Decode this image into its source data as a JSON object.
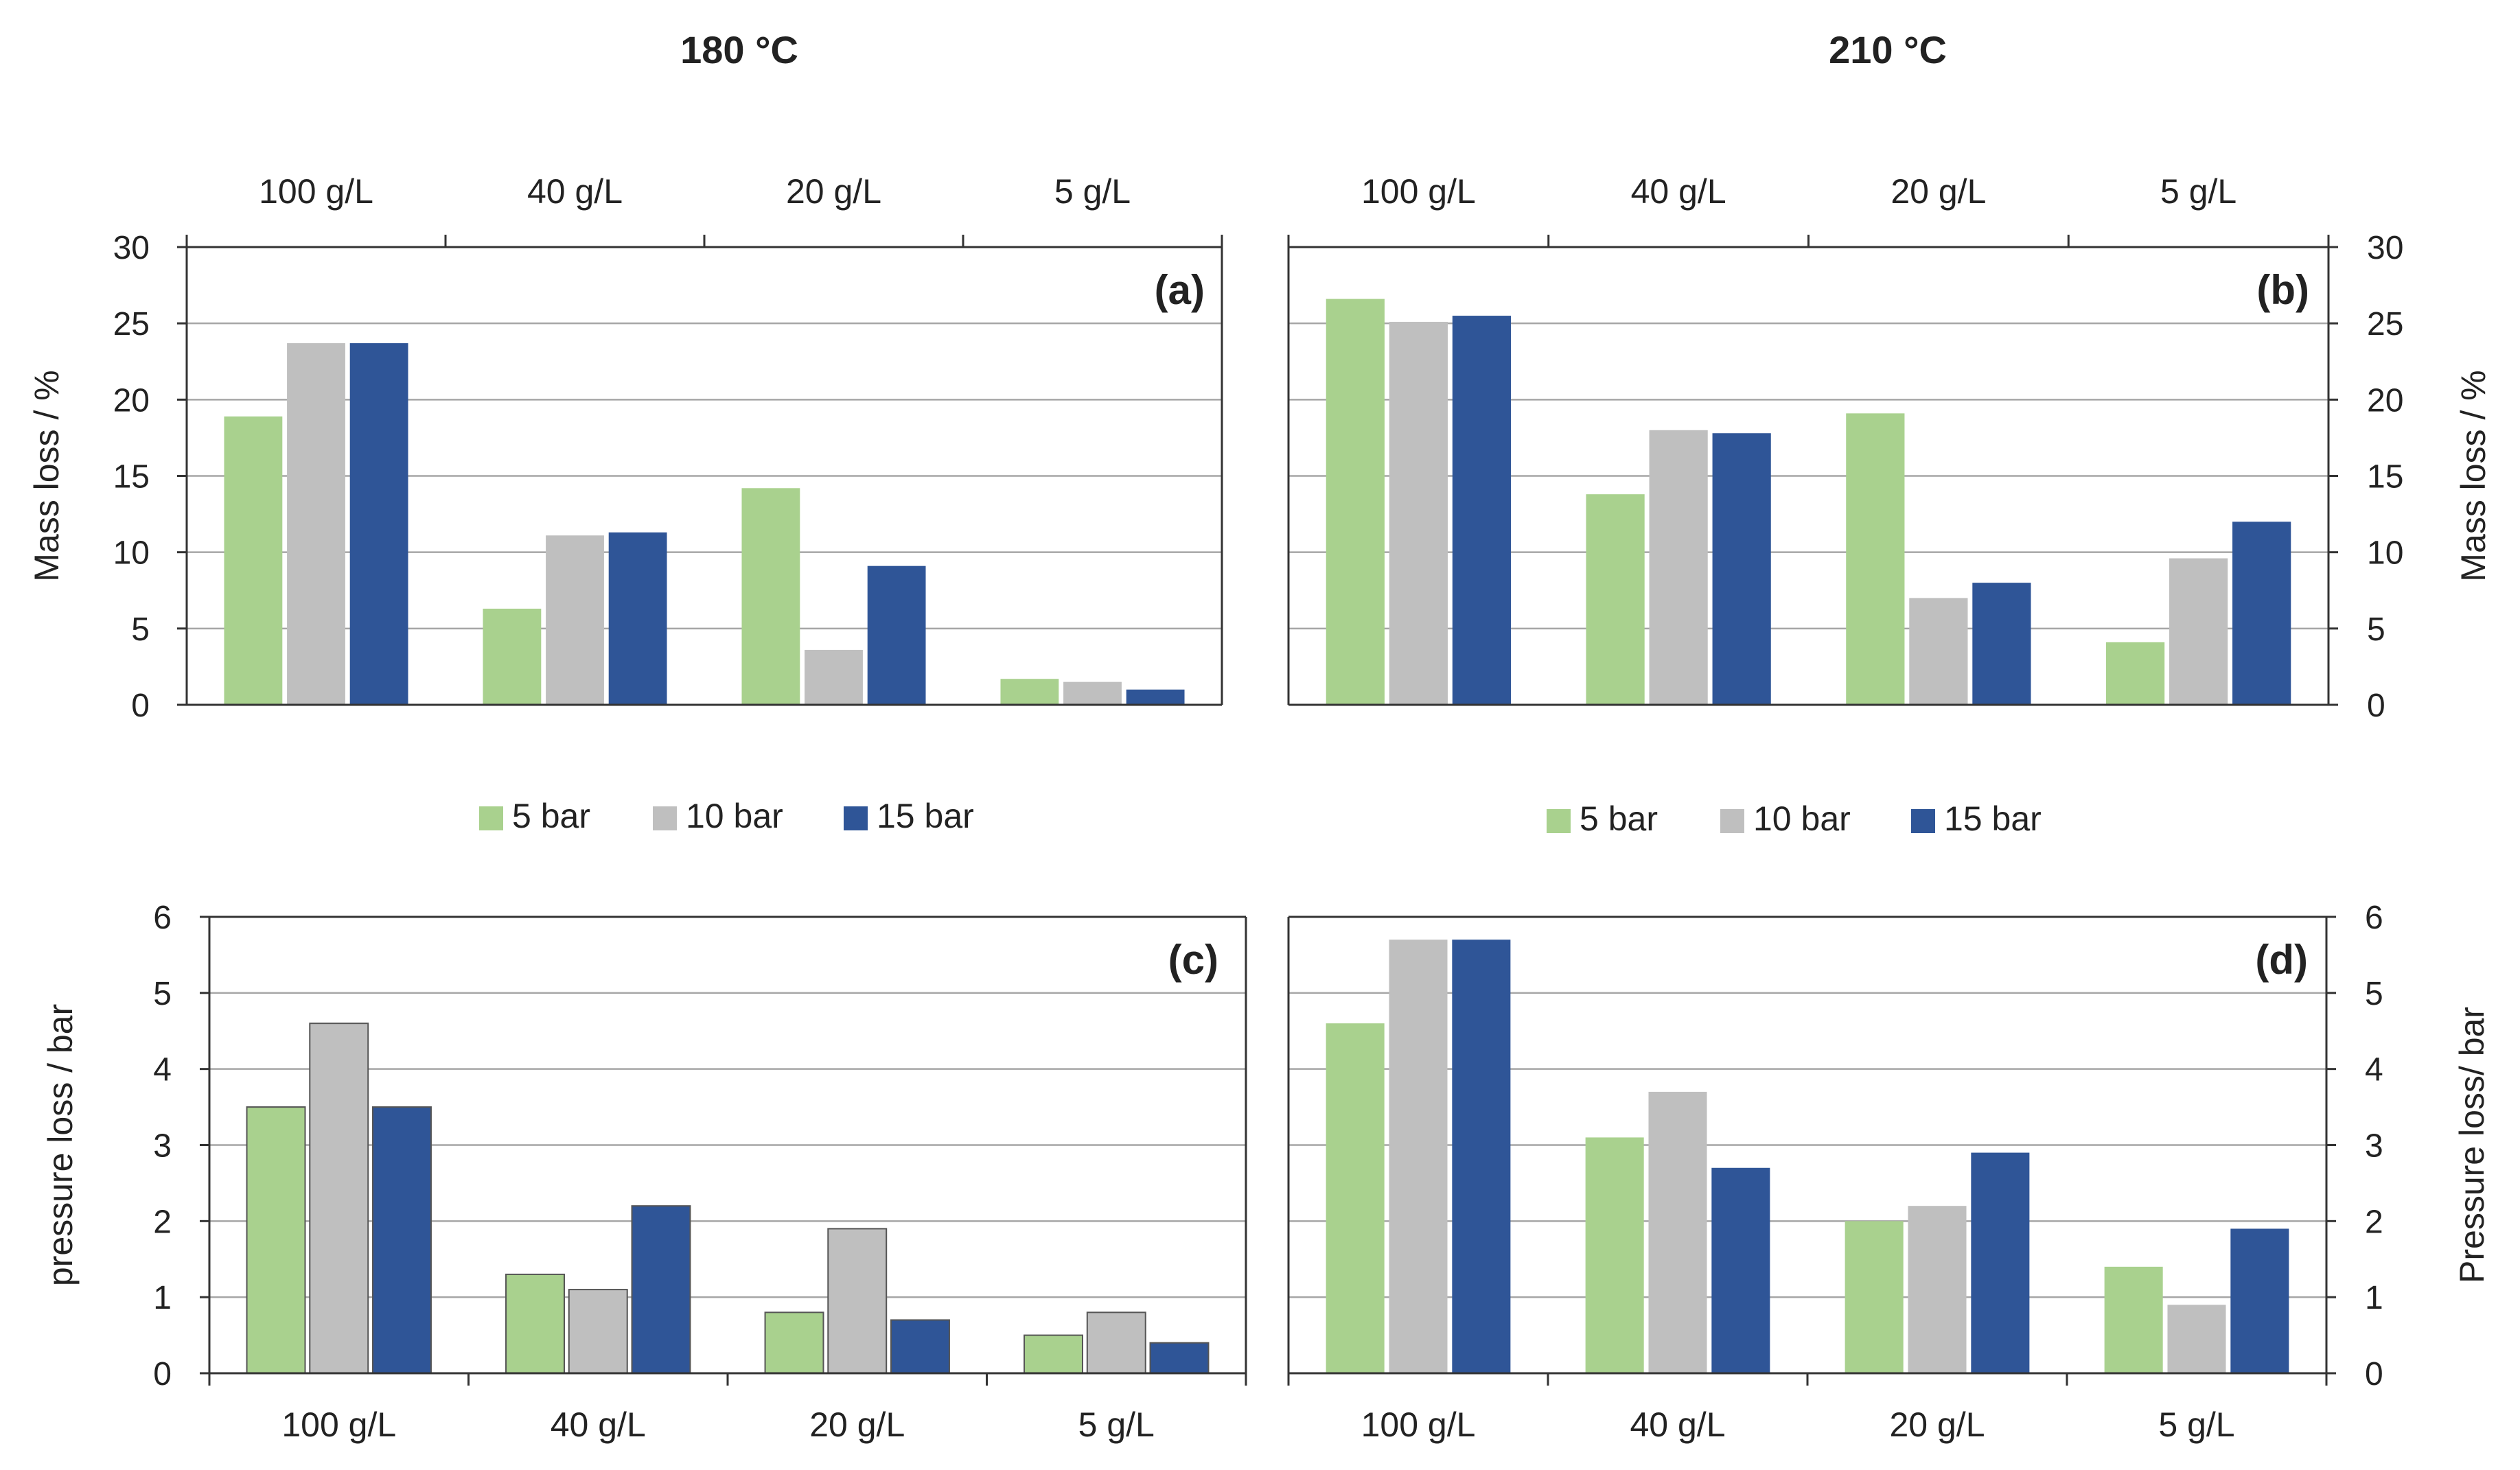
{
  "figure": {
    "col_titles": [
      "180 °C",
      "210 °C"
    ],
    "legend": {
      "entries": [
        {
          "label": "5 bar",
          "color": "#a9d18e"
        },
        {
          "label": "10 bar",
          "color": "#bfbfbf"
        },
        {
          "label": "15 bar",
          "color": "#2f5597"
        }
      ]
    }
  },
  "chart_data": [
    {
      "id": "a",
      "type": "bar",
      "panel_label": "(a)",
      "title": "180 °C",
      "categories": [
        "100 g/L",
        "40 g/L",
        "20 g/L",
        "5 g/L"
      ],
      "xlabel": "",
      "ylabel": "Mass loss / %",
      "ylim": [
        0,
        30
      ],
      "yticks": [
        0,
        5,
        10,
        15,
        20,
        25,
        30
      ],
      "category_axis": "top",
      "value_axis": "left",
      "grid": true,
      "series": [
        {
          "name": "5 bar",
          "values": [
            18.9,
            6.3,
            14.2,
            1.7
          ]
        },
        {
          "name": "10 bar",
          "values": [
            23.7,
            11.1,
            3.6,
            1.5
          ]
        },
        {
          "name": "15 bar",
          "values": [
            23.7,
            11.3,
            9.1,
            1.0
          ]
        }
      ]
    },
    {
      "id": "b",
      "type": "bar",
      "panel_label": "(b)",
      "title": "210 °C",
      "categories": [
        "100 g/L",
        "40 g/L",
        "20 g/L",
        "5 g/L"
      ],
      "xlabel": "",
      "ylabel": "Mass loss / %",
      "ylim": [
        0,
        30
      ],
      "yticks": [
        0,
        5,
        10,
        15,
        20,
        25,
        30
      ],
      "category_axis": "top",
      "value_axis": "right",
      "grid": true,
      "series": [
        {
          "name": "5 bar",
          "values": [
            26.6,
            13.8,
            19.1,
            4.1
          ]
        },
        {
          "name": "10 bar",
          "values": [
            25.1,
            18.0,
            7.0,
            9.6
          ]
        },
        {
          "name": "15 bar",
          "values": [
            25.5,
            17.8,
            8.0,
            12.0
          ]
        }
      ]
    },
    {
      "id": "c",
      "type": "bar",
      "panel_label": "(c)",
      "title": "180 °C",
      "categories": [
        "100 g/L",
        "40 g/L",
        "20 g/L",
        "5 g/L"
      ],
      "xlabel": "",
      "ylabel": "pressure loss / bar",
      "ylim": [
        0,
        6
      ],
      "yticks": [
        0,
        1,
        2,
        3,
        4,
        5,
        6
      ],
      "category_axis": "bottom",
      "value_axis": "left",
      "grid": true,
      "series": [
        {
          "name": "5 bar",
          "values": [
            3.5,
            1.3,
            0.8,
            0.5
          ]
        },
        {
          "name": "10 bar",
          "values": [
            4.6,
            1.1,
            1.9,
            0.8
          ]
        },
        {
          "name": "15 bar",
          "values": [
            3.5,
            2.2,
            0.7,
            0.4
          ]
        }
      ]
    },
    {
      "id": "d",
      "type": "bar",
      "panel_label": "(d)",
      "title": "210 °C",
      "categories": [
        "100 g/L",
        "40 g/L",
        "20 g/L",
        "5 g/L"
      ],
      "xlabel": "",
      "ylabel": "Pressure loss/ bar",
      "ylim": [
        0,
        6
      ],
      "yticks": [
        0,
        1,
        2,
        3,
        4,
        5,
        6
      ],
      "category_axis": "bottom",
      "value_axis": "right",
      "grid": true,
      "series": [
        {
          "name": "5 bar",
          "values": [
            4.6,
            3.1,
            2.0,
            1.4
          ]
        },
        {
          "name": "10 bar",
          "values": [
            5.7,
            3.7,
            2.2,
            0.9
          ]
        },
        {
          "name": "15 bar",
          "values": [
            5.7,
            2.7,
            2.9,
            1.9
          ]
        }
      ]
    }
  ]
}
